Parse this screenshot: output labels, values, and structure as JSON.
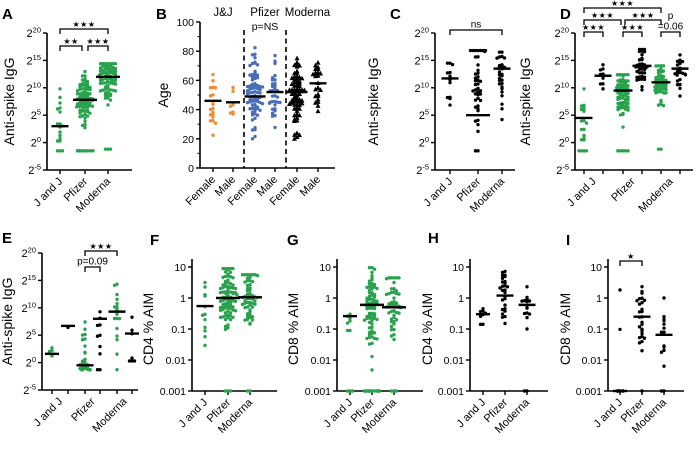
{
  "figure": {
    "description": "Multi-panel dot plot figure comparing vaccine groups",
    "panel_letters": [
      "A",
      "B",
      "C",
      "D",
      "E",
      "F",
      "G",
      "H",
      "I"
    ]
  },
  "chart_data": {
    "type": "scatter",
    "colors": {
      "green": "#28a24c",
      "orange": "#ef8d2c",
      "blue": "#4a6db8",
      "black": "#000000"
    },
    "panels": [
      {
        "key": "A",
        "letter": "A",
        "ylabel": "Anti-spike IgG",
        "ytype": "log2",
        "yticks": [
          "20",
          "15",
          "10",
          "5",
          "0",
          "-5"
        ],
        "xlabels": [
          "J and J",
          "Pfizer",
          "Moderna"
        ],
        "paired": false,
        "groups": [
          {
            "label": "J and J",
            "color": "green",
            "marker": "circle",
            "n": 15,
            "mu": 3.2,
            "sd": 2.6,
            "lo": 0.3,
            "hi": 9.8,
            "bar": 3,
            "lod": 3,
            "lodval": -1.5
          },
          {
            "label": "Pfizer",
            "color": "green",
            "marker": "circle",
            "n": 80,
            "mu": 7.8,
            "sd": 2.5,
            "lo": 0.8,
            "hi": 13.2,
            "bar": 7.8,
            "lod": 11,
            "lodval": -1.5
          },
          {
            "label": "Moderna",
            "color": "green",
            "marker": "circle",
            "n": 85,
            "mu": 12,
            "sd": 2.0,
            "lo": 1.5,
            "hi": 14.4,
            "bar": 12,
            "lod": 3,
            "lodval": -1.2
          }
        ],
        "sig": [
          {
            "a": 0,
            "b": 1,
            "label": "★★",
            "level": 1,
            "dx2": -3
          },
          {
            "a": 1,
            "b": 2,
            "label": "★★★",
            "level": 1,
            "dx1": 3
          },
          {
            "a": 0,
            "b": 2,
            "label": "★★★",
            "level": 2
          }
        ]
      },
      {
        "key": "B",
        "letter": "B",
        "ylabel": "Age",
        "ytype": "linear",
        "yticks": [
          "100",
          "80",
          "60",
          "40",
          "20",
          "0"
        ],
        "xlabels": [
          "Female",
          "Male",
          "Female",
          "Male",
          "Female",
          "Male"
        ],
        "paired": false,
        "headers": [
          {
            "text": "J&J",
            "color": "orange"
          },
          {
            "text": "Pfizer",
            "color": "blue"
          },
          {
            "text": "Moderna",
            "color": "black"
          }
        ],
        "note": "p=NS",
        "dividers": [
          1,
          3
        ],
        "groups": [
          {
            "label": "J&J Female",
            "color": "orange",
            "marker": "circle",
            "n": 19,
            "mu": 46,
            "sd": 11,
            "lo": 19,
            "hi": 72,
            "bar": 46
          },
          {
            "label": "J&J Male",
            "color": "orange",
            "marker": "circle",
            "n": 7,
            "mu": 47,
            "sd": 13,
            "lo": 37,
            "hi": 83,
            "bar": 45
          },
          {
            "label": "Pfizer Female",
            "color": "blue",
            "marker": "circle",
            "n": 80,
            "mu": 50,
            "sd": 13,
            "lo": 20,
            "hi": 83,
            "bar": 49
          },
          {
            "label": "Pfizer Male",
            "color": "blue",
            "marker": "circle",
            "n": 33,
            "mu": 51,
            "sd": 11,
            "lo": 26,
            "hi": 77,
            "bar": 52
          },
          {
            "label": "Moderna Female",
            "color": "black",
            "marker": "triangle",
            "n": 70,
            "mu": 51,
            "sd": 13,
            "lo": 20,
            "hi": 80,
            "bar": 52
          },
          {
            "label": "Moderna Male",
            "color": "black",
            "marker": "triangle",
            "n": 24,
            "mu": 56,
            "sd": 12,
            "lo": 28,
            "hi": 80,
            "bar": 58
          }
        ],
        "sig": []
      },
      {
        "key": "C",
        "letter": "C",
        "ylabel": "Anti-spike IgG",
        "ytype": "log2",
        "yticks": [
          "20",
          "15",
          "10",
          "5",
          "0",
          "-5"
        ],
        "xlabels": [
          "J and J",
          "Pfizer",
          "Moderna"
        ],
        "paired": false,
        "groups": [
          {
            "label": "J and J",
            "color": "black",
            "marker": "circle",
            "n": 12,
            "mu": 11.7,
            "sd": 2.2,
            "lo": 6.8,
            "hi": 14.5,
            "bar": 11.7
          },
          {
            "label": "Pfizer",
            "color": "black",
            "marker": "circle",
            "n": 40,
            "mu": 11.5,
            "sd": 4.5,
            "lo": -1,
            "hi": 16.8,
            "bar": 5,
            "lod": 2,
            "lodval": -1.5
          },
          {
            "label": "Moderna",
            "color": "black",
            "marker": "circle",
            "n": 28,
            "mu": 12.5,
            "sd": 3.8,
            "lo": 0.5,
            "hi": 16.5,
            "bar": 13.5
          }
        ],
        "sig": [
          {
            "a": 0,
            "b": 2,
            "label": "ns",
            "level": 1,
            "text": true
          }
        ]
      },
      {
        "key": "D",
        "letter": "D",
        "ylabel": "Anti-spike IgG",
        "ytype": "log2",
        "yticks": [
          "20",
          "15",
          "10",
          "5",
          "0",
          "-5"
        ],
        "xlabels": [
          "J and J",
          "Pfizer",
          "Moderna"
        ],
        "paired": true,
        "groups": [
          {
            "label": "J and J naive",
            "color": "green",
            "marker": "circle",
            "n": 15,
            "mu": 4.6,
            "sd": 2.4,
            "lo": 0.5,
            "hi": 9.8,
            "bar": 4.5,
            "lod": 4,
            "lodval": -1.5
          },
          {
            "label": "J and J recovered",
            "color": "black",
            "marker": "circle",
            "n": 9,
            "mu": 12.2,
            "sd": 1.5,
            "lo": 7,
            "hi": 14.2,
            "bar": 12.2
          },
          {
            "label": "Pfizer naive",
            "color": "green",
            "marker": "circle",
            "n": 80,
            "mu": 9.3,
            "sd": 2.2,
            "lo": 1,
            "hi": 12.4,
            "bar": 9.5,
            "lod": 6,
            "lodval": -1.5
          },
          {
            "label": "Pfizer recovered",
            "color": "black",
            "marker": "circle",
            "n": 38,
            "mu": 13.8,
            "sd": 2.0,
            "lo": 4,
            "hi": 17,
            "bar": 14
          },
          {
            "label": "Moderna naive",
            "color": "green",
            "marker": "circle",
            "n": 55,
            "mu": 11,
            "sd": 2.0,
            "lo": 3,
            "hi": 14,
            "bar": 11,
            "lod": 2,
            "lodval": -1.2
          },
          {
            "label": "Moderna recovered",
            "color": "black",
            "marker": "circle",
            "n": 22,
            "mu": 13.2,
            "sd": 2.2,
            "lo": 3.5,
            "hi": 16,
            "bar": 13.5
          }
        ],
        "sig": [
          {
            "a": 0,
            "b": 1,
            "label": "★★★",
            "level": 1
          },
          {
            "a": 2,
            "b": 3,
            "label": "★★★",
            "level": 1
          },
          {
            "a": 4,
            "b": 5,
            "label": "=0.06",
            "top": "p",
            "level": 1,
            "text": true
          },
          {
            "a": 0,
            "b": 2,
            "label": "★★★",
            "level": 2,
            "dx2": -2
          },
          {
            "a": 2,
            "b": 4,
            "label": "★★★",
            "level": 2,
            "dx1": 2
          },
          {
            "a": 0,
            "b": 4,
            "label": "★★★",
            "level": 3
          }
        ]
      },
      {
        "key": "E",
        "letter": "E",
        "ylabel": "Anti-spike IgG",
        "ytype": "log2",
        "yticks": [
          "20",
          "15",
          "10",
          "5",
          "0",
          "-5"
        ],
        "xlabels": [
          "J and J",
          "Pfizer",
          "Moderna"
        ],
        "paired": true,
        "groups": [
          {
            "label": "J and J naive",
            "color": "green",
            "marker": "circle",
            "n": 4,
            "mu": 1.6,
            "sd": 1.0,
            "lo": 0.2,
            "hi": 2.7,
            "bar": 1.6
          },
          {
            "label": "J and J recovered",
            "color": "black",
            "marker": "circle",
            "n": 2,
            "mu": 6.7,
            "sd": 0.2,
            "lo": 6.4,
            "hi": 7,
            "bar": 6.7
          },
          {
            "label": "Pfizer naive",
            "color": "green",
            "marker": "circle",
            "n": 22,
            "mu": 1.5,
            "sd": 3.6,
            "lo": -1.1,
            "hi": 11,
            "bar": -0.5,
            "lod": 6,
            "lodval": -1.3
          },
          {
            "label": "Pfizer recovered",
            "color": "black",
            "marker": "circle",
            "n": 8,
            "mu": 7.5,
            "sd": 3.2,
            "lo": -0.5,
            "hi": 12.3,
            "bar": 8,
            "lod": 2,
            "lodval": -1.3
          },
          {
            "label": "Moderna naive",
            "color": "green",
            "marker": "circle",
            "n": 16,
            "mu": 9.5,
            "sd": 3.2,
            "lo": 1.5,
            "hi": 14.3,
            "bar": 9.3,
            "lod": 1,
            "lodval": -1.3
          },
          {
            "label": "Moderna recovered",
            "color": "black",
            "marker": "circle",
            "n": 7,
            "mu": 5.5,
            "sd": 4.2,
            "lo": 0.3,
            "hi": 16,
            "bar": 5.3
          }
        ],
        "sig": [
          {
            "a": 2,
            "b": 3,
            "label": "p=0.09",
            "level": 1,
            "text": true
          },
          {
            "a": 2,
            "b": 4,
            "label": "★★★",
            "level": 2
          }
        ]
      },
      {
        "key": "F",
        "letter": "F",
        "ylabel": "CD4 % AIM",
        "ytype": "log10",
        "yticks": [
          "10",
          "1",
          "0.1",
          "0.01",
          "0.001"
        ],
        "xlabels": [
          "J and J",
          "Pfizer",
          "Moderna"
        ],
        "paired": false,
        "groups": [
          {
            "label": "J and J",
            "color": "green",
            "marker": "circle",
            "n": 12,
            "mu": -0.26,
            "sd": 0.6,
            "lo": -2.1,
            "hi": 0.5,
            "bar": 0.55
          },
          {
            "label": "Pfizer",
            "color": "green",
            "marker": "circle",
            "n": 85,
            "mu": 0.0,
            "sd": 0.55,
            "lo": -2.1,
            "hi": 0.95,
            "bar": 1,
            "lod": 3,
            "lodval": -3
          },
          {
            "label": "Moderna",
            "color": "green",
            "marker": "circle",
            "n": 55,
            "mu": 0.02,
            "sd": 0.5,
            "lo": -2.05,
            "hi": 0.75,
            "bar": 1.05,
            "lod": 2,
            "lodval": -3
          }
        ],
        "sig": []
      },
      {
        "key": "G",
        "letter": "G",
        "ylabel": "CD8 % AIM",
        "ytype": "log10",
        "yticks": [
          "10",
          "1",
          "0.1",
          "0.01",
          "0.001"
        ],
        "xlabels": [
          "J and J",
          "Pfizer",
          "Moderna"
        ],
        "paired": false,
        "groups": [
          {
            "label": "J and J",
            "color": "green",
            "marker": "circle",
            "n": 7,
            "mu": -0.6,
            "sd": 0.45,
            "lo": -1.05,
            "hi": 0.18,
            "bar": 0.26,
            "lod": 4,
            "lodval": -3
          },
          {
            "label": "Pfizer",
            "color": "green",
            "marker": "circle",
            "n": 75,
            "mu": -0.25,
            "sd": 0.65,
            "lo": -2.6,
            "hi": 0.98,
            "bar": 0.6,
            "lod": 15,
            "lodval": -3
          },
          {
            "label": "Moderna",
            "color": "green",
            "marker": "circle",
            "n": 50,
            "mu": -0.3,
            "sd": 0.55,
            "lo": -1.8,
            "hi": 0.65,
            "bar": 0.5,
            "lod": 3,
            "lodval": -3
          }
        ],
        "sig": []
      },
      {
        "key": "H",
        "letter": "H",
        "ylabel": "CD4 % AIM",
        "ytype": "log10",
        "yticks": [
          "10",
          "1",
          "0.1",
          "0.01",
          "0.001"
        ],
        "xlabels": [
          "J and J",
          "Pfizer",
          "Moderna"
        ],
        "paired": false,
        "groups": [
          {
            "label": "J and J",
            "color": "black",
            "marker": "circle",
            "n": 8,
            "mu": -0.5,
            "sd": 0.3,
            "lo": -0.85,
            "hi": 0.1,
            "bar": 0.3
          },
          {
            "label": "Pfizer",
            "color": "black",
            "marker": "circle",
            "n": 27,
            "mu": 0.05,
            "sd": 0.5,
            "lo": -1,
            "hi": 1.15,
            "bar": 1.2
          },
          {
            "label": "Moderna",
            "color": "black",
            "marker": "circle",
            "n": 14,
            "mu": -0.2,
            "sd": 0.45,
            "lo": -1,
            "hi": 0.5,
            "bar": 0.6,
            "lod": 2,
            "lodval": -3
          }
        ],
        "sig": []
      },
      {
        "key": "I",
        "letter": "I",
        "ylabel": "CD8 % AIM",
        "ytype": "log10",
        "yticks": [
          "10",
          "1",
          "0.1",
          "0.01",
          "0.001"
        ],
        "xlabels": [
          "J and J",
          "Pfizer",
          "Moderna"
        ],
        "paired": false,
        "groups": [
          {
            "label": "J and J",
            "color": "black",
            "marker": "circle",
            "n": 2,
            "mu": -1,
            "sd": 1.6,
            "lo": -2,
            "hi": 0.26,
            "bar": 0.001,
            "lod": 6,
            "lodval": -3
          },
          {
            "label": "Pfizer",
            "color": "black",
            "marker": "circle",
            "n": 26,
            "mu": -0.6,
            "sd": 0.55,
            "lo": -1.7,
            "hi": 0.72,
            "bar": 0.25,
            "lod": 1,
            "lodval": -3
          },
          {
            "label": "Moderna",
            "color": "black",
            "marker": "circle",
            "n": 13,
            "mu": -1.1,
            "sd": 0.55,
            "lo": -2.2,
            "hi": 0.0,
            "bar": 0.065,
            "lod": 2,
            "lodval": -3
          }
        ],
        "sig": [
          {
            "a": 0,
            "b": 1,
            "label": "★",
            "level": 1
          }
        ]
      }
    ]
  }
}
